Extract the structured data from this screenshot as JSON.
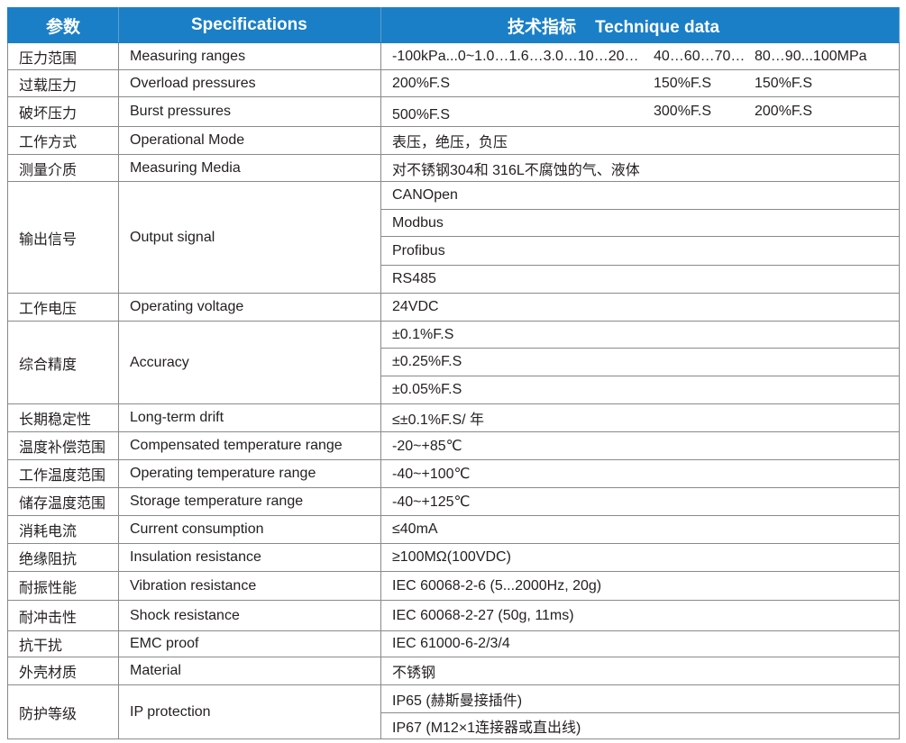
{
  "header": {
    "param": "参数",
    "spec": "Specifications",
    "tech": "技术指标    Technique data"
  },
  "colors": {
    "header_bg": "#1a7fc6",
    "border": "#8a8a8a"
  },
  "rows": [
    {
      "cn": "压力范围",
      "en": "Measuring ranges",
      "cols": [
        "-100kPa...0~1.0…1.6…3.0…10…20…",
        "40…60…70…",
        "80…90...100MPa"
      ]
    },
    {
      "cn": "过载压力",
      "en": "Overload pressures",
      "cols": [
        "200%F.S",
        "150%F.S",
        "150%F.S"
      ]
    },
    {
      "cn": "破坏压力",
      "en": "Burst pressures",
      "cols": [
        "500%F.S",
        "300%F.S",
        "200%F.S"
      ]
    },
    {
      "cn": "工作方式",
      "en": "Operational Mode",
      "values": [
        "表压，绝压，负压"
      ]
    },
    {
      "cn": "测量介质",
      "en": "Measuring Media",
      "values": [
        "对不锈钢304和 316L不腐蚀的气、液体"
      ]
    },
    {
      "cn": "输出信号",
      "en": "Output signal",
      "values": [
        "CANOpen",
        "Modbus",
        "Profibus",
        "RS485"
      ]
    },
    {
      "cn": "工作电压",
      "en": "Operating voltage",
      "values": [
        "24VDC"
      ]
    },
    {
      "cn": "综合精度",
      "en": "Accuracy",
      "values": [
        "±0.1%F.S",
        "±0.25%F.S",
        "±0.05%F.S"
      ]
    },
    {
      "cn": "长期稳定性",
      "en": "Long-term drift",
      "values": [
        "≤±0.1%F.S/ 年"
      ]
    },
    {
      "cn": "温度补偿范围",
      "en": "Compensated temperature range",
      "values": [
        "-20~+85℃"
      ]
    },
    {
      "cn": "工作温度范围",
      "en": "Operating temperature range",
      "values": [
        "-40~+100℃"
      ]
    },
    {
      "cn": "储存温度范围",
      "en": "Storage temperature range",
      "values": [
        "-40~+125℃"
      ]
    },
    {
      "cn": "消耗电流",
      "en": "Current consumption",
      "values": [
        "≤40mA"
      ]
    },
    {
      "cn": "绝缘阻抗",
      "en": "Insulation resistance",
      "values": [
        "≥100MΩ(100VDC)"
      ]
    },
    {
      "cn": "耐振性能",
      "en": "Vibration resistance",
      "values": [
        "IEC 60068-2-6 (5...2000Hz, 20g)"
      ]
    },
    {
      "cn": "耐冲击性",
      "en": "Shock resistance",
      "values": [
        "IEC 60068-2-27 (50g, 11ms)"
      ]
    },
    {
      "cn": "抗干扰",
      "en": "EMC proof",
      "values": [
        "IEC 61000-6-2/3/4"
      ]
    },
    {
      "cn": "外壳材质",
      "en": "Material",
      "values": [
        "不锈钢"
      ]
    },
    {
      "cn": "防护等级",
      "en": "IP protection",
      "values": [
        "IP65 (赫斯曼接插件)",
        "IP67 (M12×1连接器或直出线)"
      ]
    }
  ]
}
